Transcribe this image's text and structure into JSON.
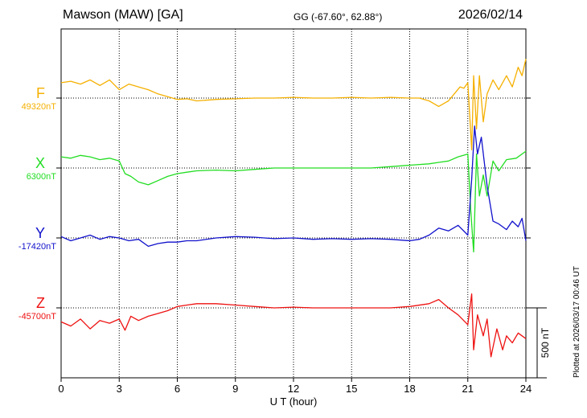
{
  "header": {
    "station": "Mawson (MAW)  [GA]",
    "coords": "GG (-67.60°,  62.88°)",
    "date": "2026/02/14"
  },
  "footer": {
    "plotted": "Plotted at 2026/03/17 00:46 UT"
  },
  "chart_data": {
    "type": "line",
    "xlabel": "U T (hour)",
    "xlim": [
      0,
      24
    ],
    "xticks": [
      0,
      3,
      6,
      9,
      12,
      15,
      18,
      21,
      24
    ],
    "scale_bar": {
      "label": "500 nT",
      "value": 500
    },
    "series": [
      {
        "name": "F",
        "baseline_label": "49320nT",
        "color": "#f5b000",
        "points": [
          [
            0,
            49430
          ],
          [
            0.5,
            49440
          ],
          [
            1,
            49420
          ],
          [
            1.5,
            49450
          ],
          [
            2,
            49410
          ],
          [
            2.5,
            49450
          ],
          [
            3,
            49380
          ],
          [
            3.5,
            49420
          ],
          [
            4,
            49400
          ],
          [
            4.5,
            49380
          ],
          [
            5,
            49350
          ],
          [
            5.5,
            49330
          ],
          [
            6,
            49310
          ],
          [
            6.5,
            49315
          ],
          [
            7,
            49300
          ],
          [
            8,
            49310
          ],
          [
            9,
            49315
          ],
          [
            10,
            49320
          ],
          [
            11,
            49320
          ],
          [
            12,
            49325
          ],
          [
            13,
            49320
          ],
          [
            14,
            49320
          ],
          [
            15,
            49325
          ],
          [
            16,
            49320
          ],
          [
            17,
            49325
          ],
          [
            18,
            49320
          ],
          [
            18.5,
            49320
          ],
          [
            19,
            49300
          ],
          [
            19.5,
            49260
          ],
          [
            20,
            49300
          ],
          [
            20.3,
            49350
          ],
          [
            20.6,
            49400
          ],
          [
            20.8,
            49390
          ],
          [
            21,
            49430
          ],
          [
            21.2,
            48950
          ],
          [
            21.3,
            49480
          ],
          [
            21.45,
            49100
          ],
          [
            21.6,
            49480
          ],
          [
            21.8,
            49150
          ],
          [
            22,
            49350
          ],
          [
            22.3,
            49450
          ],
          [
            22.6,
            49380
          ],
          [
            23,
            49480
          ],
          [
            23.3,
            49400
          ],
          [
            23.6,
            49540
          ],
          [
            23.8,
            49480
          ],
          [
            24,
            49600
          ]
        ]
      },
      {
        "name": "X",
        "baseline_label": "6300nT",
        "color": "#22dd22",
        "points": [
          [
            0,
            6380
          ],
          [
            0.5,
            6370
          ],
          [
            1,
            6390
          ],
          [
            1.5,
            6380
          ],
          [
            2,
            6360
          ],
          [
            2.5,
            6370
          ],
          [
            3,
            6350
          ],
          [
            3.3,
            6260
          ],
          [
            3.6,
            6240
          ],
          [
            4,
            6200
          ],
          [
            4.5,
            6180
          ],
          [
            5,
            6210
          ],
          [
            5.5,
            6240
          ],
          [
            6,
            6260
          ],
          [
            6.5,
            6270
          ],
          [
            7,
            6280
          ],
          [
            8,
            6285
          ],
          [
            9,
            6280
          ],
          [
            10,
            6290
          ],
          [
            11,
            6300
          ],
          [
            12,
            6300
          ],
          [
            13,
            6300
          ],
          [
            14,
            6300
          ],
          [
            15,
            6300
          ],
          [
            16,
            6300
          ],
          [
            17,
            6310
          ],
          [
            18,
            6320
          ],
          [
            19,
            6330
          ],
          [
            19.5,
            6340
          ],
          [
            20,
            6350
          ],
          [
            20.5,
            6380
          ],
          [
            21,
            6400
          ],
          [
            21.15,
            6000
          ],
          [
            21.3,
            5700
          ],
          [
            21.45,
            6400
          ],
          [
            21.6,
            6100
          ],
          [
            21.8,
            6250
          ],
          [
            22,
            6100
          ],
          [
            22.3,
            6350
          ],
          [
            22.6,
            6280
          ],
          [
            23,
            6360
          ],
          [
            23.5,
            6370
          ],
          [
            24,
            6420
          ]
        ]
      },
      {
        "name": "Y",
        "baseline_label": "-17420nT",
        "color": "#1111cc",
        "points": [
          [
            0,
            -17410
          ],
          [
            0.5,
            -17440
          ],
          [
            1,
            -17420
          ],
          [
            1.5,
            -17400
          ],
          [
            2,
            -17430
          ],
          [
            2.5,
            -17410
          ],
          [
            3,
            -17420
          ],
          [
            3.5,
            -17440
          ],
          [
            4,
            -17430
          ],
          [
            4.5,
            -17480
          ],
          [
            5,
            -17460
          ],
          [
            5.5,
            -17450
          ],
          [
            6,
            -17450
          ],
          [
            6.5,
            -17440
          ],
          [
            7,
            -17440
          ],
          [
            8,
            -17420
          ],
          [
            9,
            -17410
          ],
          [
            10,
            -17415
          ],
          [
            11,
            -17425
          ],
          [
            12,
            -17420
          ],
          [
            13,
            -17430
          ],
          [
            14,
            -17425
          ],
          [
            15,
            -17430
          ],
          [
            16,
            -17425
          ],
          [
            17,
            -17430
          ],
          [
            18,
            -17440
          ],
          [
            18.5,
            -17430
          ],
          [
            19,
            -17400
          ],
          [
            19.5,
            -17350
          ],
          [
            20,
            -17370
          ],
          [
            20.5,
            -17330
          ],
          [
            21,
            -17400
          ],
          [
            21.2,
            -17000
          ],
          [
            21.35,
            -16620
          ],
          [
            21.5,
            -16820
          ],
          [
            21.7,
            -16700
          ],
          [
            22,
            -17050
          ],
          [
            22.3,
            -17300
          ],
          [
            22.6,
            -17320
          ],
          [
            23,
            -17360
          ],
          [
            23.3,
            -17300
          ],
          [
            23.6,
            -17340
          ],
          [
            23.8,
            -17280
          ],
          [
            24,
            -17440
          ]
        ]
      },
      {
        "name": "Z",
        "baseline_label": "-45700nT",
        "color": "#ee1111",
        "points": [
          [
            0,
            -45800
          ],
          [
            0.5,
            -45830
          ],
          [
            1,
            -45780
          ],
          [
            1.5,
            -45850
          ],
          [
            2,
            -45790
          ],
          [
            2.5,
            -45810
          ],
          [
            3,
            -45780
          ],
          [
            3.3,
            -45860
          ],
          [
            3.6,
            -45760
          ],
          [
            4,
            -45790
          ],
          [
            4.5,
            -45760
          ],
          [
            5,
            -45740
          ],
          [
            5.5,
            -45720
          ],
          [
            6,
            -45690
          ],
          [
            6.5,
            -45680
          ],
          [
            7,
            -45670
          ],
          [
            8,
            -45670
          ],
          [
            9,
            -45680
          ],
          [
            10,
            -45690
          ],
          [
            11,
            -45700
          ],
          [
            12,
            -45695
          ],
          [
            13,
            -45700
          ],
          [
            14,
            -45700
          ],
          [
            15,
            -45700
          ],
          [
            16,
            -45700
          ],
          [
            17,
            -45700
          ],
          [
            18,
            -45690
          ],
          [
            19,
            -45670
          ],
          [
            19.5,
            -45640
          ],
          [
            20,
            -45700
          ],
          [
            20.5,
            -45750
          ],
          [
            21,
            -45820
          ],
          [
            21.2,
            -45600
          ],
          [
            21.3,
            -46000
          ],
          [
            21.5,
            -45750
          ],
          [
            21.8,
            -45900
          ],
          [
            22,
            -45780
          ],
          [
            22.2,
            -46050
          ],
          [
            22.5,
            -45850
          ],
          [
            22.8,
            -46000
          ],
          [
            23,
            -45900
          ],
          [
            23.3,
            -45950
          ],
          [
            23.6,
            -45880
          ],
          [
            24,
            -45920
          ]
        ]
      }
    ]
  }
}
